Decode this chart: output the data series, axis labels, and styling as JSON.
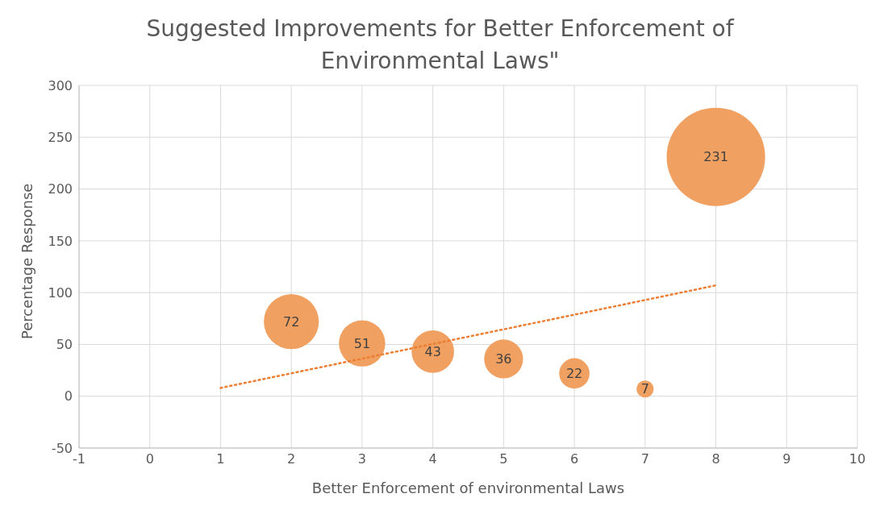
{
  "chart_data": {
    "type": "bubble",
    "title": "Suggested Improvements for Better Enforcement of Environmental Laws\"",
    "xlabel": "Better Enforcement of environmental Laws",
    "ylabel": "Percentage Response",
    "series": [
      {
        "color": "#f0a060",
        "x": [
          2,
          3,
          4,
          5,
          6,
          7,
          8
        ],
        "values": [
          72,
          51,
          43,
          36,
          22,
          7,
          231
        ],
        "value_labels": [
          "72",
          "51",
          "43",
          "36",
          "22",
          "7",
          "231"
        ],
        "sizes": [
          0.312,
          0.221,
          0.186,
          0.156,
          0.095,
          0.03,
          1
        ],
        "marker": "circle"
      },
      {
        "type": "line",
        "color": "#ed7d31",
        "x": [
          1,
          8
        ],
        "values": [
          8,
          107
        ],
        "line_style": "dotted",
        "marker": "none"
      }
    ],
    "xlim": [
      -1,
      10
    ],
    "xticks": [
      -1,
      0,
      1,
      2,
      3,
      4,
      5,
      6,
      7,
      8,
      9,
      10
    ],
    "ylim": [
      -50,
      300
    ],
    "yticks": [
      -50,
      0,
      50,
      100,
      150,
      200,
      250,
      300
    ],
    "grid": true,
    "legend": false
  }
}
